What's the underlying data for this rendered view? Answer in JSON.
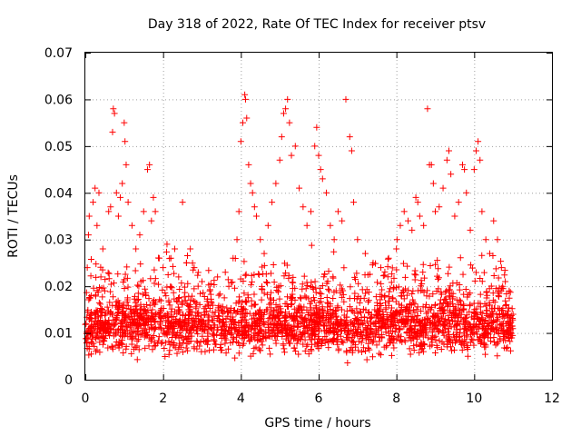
{
  "chart_data": {
    "type": "scatter",
    "title": "Day 318 of 2022, Rate Of TEC Index for receiver ptsv",
    "xlabel": "GPS time / hours",
    "ylabel": "ROTI / TECUs",
    "xlim": [
      0,
      12
    ],
    "ylim": [
      0,
      0.07
    ],
    "x_ticks": [
      "0",
      "2",
      "4",
      "6",
      "8",
      "10",
      "12"
    ],
    "y_ticks": [
      "0",
      "0.01",
      "0.02",
      "0.03",
      "0.04",
      "0.05",
      "0.06",
      "0.07"
    ],
    "grid": true,
    "marker": "+",
    "color": "#ff0000",
    "data_range_hours": [
      0,
      11
    ],
    "series": [
      {
        "name": "ROTI",
        "points": [
          [
            0.02,
            0.012
          ],
          [
            0.05,
            0.024
          ],
          [
            0.08,
            0.031
          ],
          [
            0.1,
            0.035
          ],
          [
            0.15,
            0.018
          ],
          [
            0.2,
            0.038
          ],
          [
            0.25,
            0.041
          ],
          [
            0.3,
            0.033
          ],
          [
            0.35,
            0.04
          ],
          [
            0.4,
            0.022
          ],
          [
            0.45,
            0.028
          ],
          [
            0.5,
            0.019
          ],
          [
            0.6,
            0.036
          ],
          [
            0.65,
            0.037
          ],
          [
            0.7,
            0.053
          ],
          [
            0.72,
            0.058
          ],
          [
            0.75,
            0.057
          ],
          [
            0.8,
            0.04
          ],
          [
            0.85,
            0.035
          ],
          [
            0.9,
            0.039
          ],
          [
            0.95,
            0.042
          ],
          [
            1.0,
            0.055
          ],
          [
            1.02,
            0.051
          ],
          [
            1.05,
            0.046
          ],
          [
            1.1,
            0.038
          ],
          [
            1.2,
            0.033
          ],
          [
            1.3,
            0.028
          ],
          [
            1.4,
            0.031
          ],
          [
            1.5,
            0.036
          ],
          [
            1.6,
            0.045
          ],
          [
            1.65,
            0.046
          ],
          [
            1.7,
            0.034
          ],
          [
            1.75,
            0.039
          ],
          [
            1.8,
            0.036
          ],
          [
            1.9,
            0.026
          ],
          [
            2.0,
            0.024
          ],
          [
            2.1,
            0.029
          ],
          [
            2.2,
            0.026
          ],
          [
            2.3,
            0.028
          ],
          [
            2.4,
            0.022
          ],
          [
            2.5,
            0.038
          ],
          [
            2.6,
            0.025
          ],
          [
            2.7,
            0.028
          ],
          [
            2.8,
            0.024
          ],
          [
            2.9,
            0.02
          ],
          [
            3.0,
            0.021
          ],
          [
            3.2,
            0.019
          ],
          [
            3.4,
            0.022
          ],
          [
            3.6,
            0.023
          ],
          [
            3.8,
            0.026
          ],
          [
            3.9,
            0.03
          ],
          [
            3.95,
            0.036
          ],
          [
            4.0,
            0.051
          ],
          [
            4.05,
            0.055
          ],
          [
            4.1,
            0.061
          ],
          [
            4.12,
            0.06
          ],
          [
            4.15,
            0.056
          ],
          [
            4.2,
            0.046
          ],
          [
            4.25,
            0.042
          ],
          [
            4.3,
            0.04
          ],
          [
            4.35,
            0.037
          ],
          [
            4.4,
            0.035
          ],
          [
            4.5,
            0.03
          ],
          [
            4.6,
            0.027
          ],
          [
            4.7,
            0.033
          ],
          [
            4.8,
            0.038
          ],
          [
            4.9,
            0.042
          ],
          [
            5.0,
            0.047
          ],
          [
            5.05,
            0.052
          ],
          [
            5.1,
            0.057
          ],
          [
            5.15,
            0.058
          ],
          [
            5.2,
            0.06
          ],
          [
            5.25,
            0.055
          ],
          [
            5.3,
            0.048
          ],
          [
            5.4,
            0.05
          ],
          [
            5.5,
            0.041
          ],
          [
            5.6,
            0.037
          ],
          [
            5.7,
            0.033
          ],
          [
            5.8,
            0.036
          ],
          [
            5.9,
            0.05
          ],
          [
            5.95,
            0.054
          ],
          [
            6.0,
            0.048
          ],
          [
            6.05,
            0.045
          ],
          [
            6.1,
            0.043
          ],
          [
            6.2,
            0.04
          ],
          [
            6.3,
            0.033
          ],
          [
            6.4,
            0.03
          ],
          [
            6.5,
            0.036
          ],
          [
            6.6,
            0.034
          ],
          [
            6.7,
            0.06
          ],
          [
            6.8,
            0.052
          ],
          [
            6.85,
            0.049
          ],
          [
            6.9,
            0.038
          ],
          [
            7.0,
            0.03
          ],
          [
            7.2,
            0.027
          ],
          [
            7.4,
            0.025
          ],
          [
            7.6,
            0.024
          ],
          [
            7.8,
            0.026
          ],
          [
            8.0,
            0.028
          ],
          [
            8.1,
            0.033
          ],
          [
            8.2,
            0.036
          ],
          [
            8.3,
            0.034
          ],
          [
            8.4,
            0.032
          ],
          [
            8.5,
            0.039
          ],
          [
            8.55,
            0.038
          ],
          [
            8.6,
            0.035
          ],
          [
            8.7,
            0.033
          ],
          [
            8.8,
            0.058
          ],
          [
            8.85,
            0.046
          ],
          [
            8.9,
            0.046
          ],
          [
            8.95,
            0.042
          ],
          [
            9.0,
            0.036
          ],
          [
            9.1,
            0.037
          ],
          [
            9.2,
            0.041
          ],
          [
            9.3,
            0.047
          ],
          [
            9.35,
            0.049
          ],
          [
            9.4,
            0.044
          ],
          [
            9.5,
            0.035
          ],
          [
            9.6,
            0.038
          ],
          [
            9.7,
            0.046
          ],
          [
            9.75,
            0.045
          ],
          [
            9.8,
            0.04
          ],
          [
            9.9,
            0.032
          ],
          [
            10.0,
            0.045
          ],
          [
            10.05,
            0.049
          ],
          [
            10.1,
            0.051
          ],
          [
            10.15,
            0.047
          ],
          [
            10.2,
            0.036
          ],
          [
            10.3,
            0.03
          ],
          [
            10.4,
            0.027
          ],
          [
            10.5,
            0.034
          ],
          [
            10.6,
            0.03
          ],
          [
            10.7,
            0.024
          ],
          [
            10.8,
            0.021
          ],
          [
            10.9,
            0.019
          ],
          [
            11.0,
            0.014
          ]
        ]
      }
    ]
  }
}
